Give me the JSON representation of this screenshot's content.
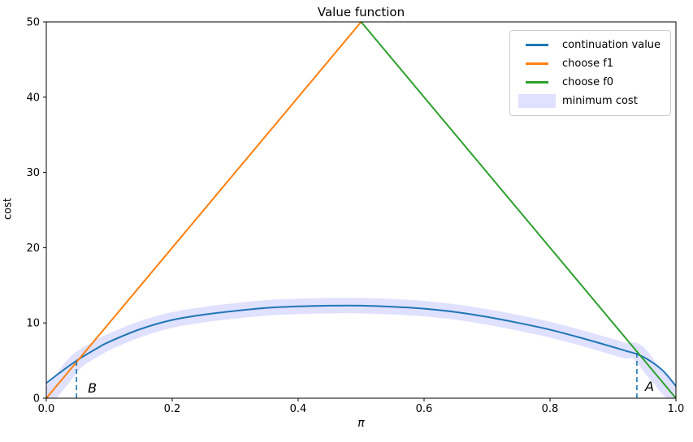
{
  "title": "Value function",
  "legend": {
    "position": "upper right",
    "items": [
      {
        "label": "continuation value",
        "color": "#1f77b4",
        "swatch": "line"
      },
      {
        "label": "choose f1",
        "color": "#ff7f0e",
        "swatch": "line"
      },
      {
        "label": "choose f0",
        "color": "#2ca02c",
        "swatch": "line"
      },
      {
        "label": "minimum cost",
        "color": "rgba(0,0,255,0.12)",
        "swatch": "patch"
      }
    ]
  },
  "chart_data": {
    "type": "line",
    "title": "Value function",
    "xlabel": "π",
    "ylabel": "cost",
    "xlim": [
      0.0,
      1.0
    ],
    "ylim": [
      0,
      50
    ],
    "grid": false,
    "legend_position": "upper right",
    "x_ticks": {
      "values": [
        0.0,
        0.2,
        0.4,
        0.6,
        0.8,
        1.0
      ],
      "labels": [
        "0.0",
        "0.2",
        "0.4",
        "0.6",
        "0.8",
        "1.0"
      ]
    },
    "y_ticks": {
      "values": [
        0,
        10,
        20,
        30,
        40,
        50
      ],
      "labels": [
        "0",
        "10",
        "20",
        "30",
        "40",
        "50"
      ]
    },
    "series": [
      {
        "name": "minimum cost",
        "kind": "band",
        "color": "rgba(0,0,255,0.12)",
        "width": 19,
        "smooth": true,
        "x": [
          0.0,
          0.024,
          0.048,
          0.08,
          0.1,
          0.15,
          0.2,
          0.25,
          0.3,
          0.35,
          0.4,
          0.45,
          0.5,
          0.55,
          0.6,
          0.65,
          0.7,
          0.75,
          0.8,
          0.85,
          0.9,
          0.92,
          0.938,
          0.96,
          0.98,
          1.0
        ],
        "y": [
          0.0,
          2.4,
          4.9,
          6.6,
          7.5,
          9.2,
          10.4,
          11.1,
          11.6,
          12.0,
          12.2,
          12.3,
          12.3,
          12.15,
          11.9,
          11.45,
          10.8,
          10.0,
          9.1,
          8.0,
          6.8,
          6.3,
          6.2,
          4.0,
          2.0,
          0.0
        ]
      },
      {
        "name": "continuation value",
        "kind": "line",
        "color": "#1f77b4",
        "width": 2,
        "smooth": true,
        "x": [
          0.0,
          0.02,
          0.05,
          0.08,
          0.1,
          0.15,
          0.2,
          0.25,
          0.3,
          0.35,
          0.4,
          0.45,
          0.5,
          0.55,
          0.6,
          0.65,
          0.7,
          0.75,
          0.8,
          0.85,
          0.9,
          0.92,
          0.94,
          0.96,
          0.98,
          1.0
        ],
        "y": [
          2.0,
          3.3,
          5.1,
          6.6,
          7.5,
          9.2,
          10.4,
          11.1,
          11.6,
          12.0,
          12.2,
          12.3,
          12.3,
          12.15,
          11.9,
          11.45,
          10.8,
          10.0,
          9.1,
          8.0,
          6.8,
          6.3,
          5.8,
          4.9,
          3.6,
          1.6
        ]
      },
      {
        "name": "choose f1",
        "kind": "line",
        "color": "#ff7f0e",
        "width": 2,
        "smooth": false,
        "x": [
          0.0,
          0.5
        ],
        "y": [
          0,
          50
        ]
      },
      {
        "name": "choose f0",
        "kind": "line",
        "color": "#2ca02c",
        "width": 2,
        "smooth": false,
        "x": [
          0.5,
          1.0
        ],
        "y": [
          50,
          0
        ]
      }
    ],
    "annotations": [
      {
        "text": "B",
        "text_x": 0.066,
        "text_y": 2.2,
        "line_x": 0.048,
        "line_y0": 0,
        "line_y1": 4.9,
        "line_color": "#1f77b4",
        "line_style": "dashed"
      },
      {
        "text": "A",
        "text_x": 0.951,
        "text_y": 2.4,
        "line_x": 0.938,
        "line_y0": 0,
        "line_y1": 6.2,
        "line_color": "#1f77b4",
        "line_style": "dashed"
      }
    ]
  }
}
